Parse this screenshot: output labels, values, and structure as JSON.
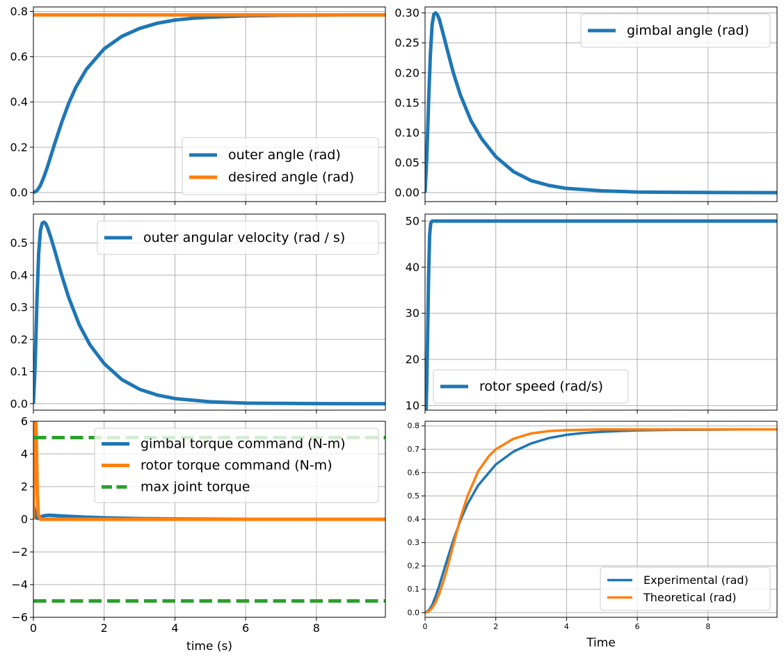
{
  "colors": {
    "blue": "#1f77b4",
    "orange": "#ff7f0e",
    "green": "#2ca02c",
    "grid": "#b0b0b0",
    "axis": "#000000"
  },
  "chart_data": [
    {
      "id": "outer-angle",
      "type": "line",
      "xlim": [
        0,
        9.95
      ],
      "ylim": [
        -0.04,
        0.82
      ],
      "xticks": [
        0,
        2,
        4,
        6,
        8
      ],
      "yticks": [
        0.0,
        0.2,
        0.4,
        0.6,
        0.8
      ],
      "ytick_labels": [
        "0.0",
        "0.2",
        "0.4",
        "0.6",
        "0.8"
      ],
      "show_xtick_labels": false,
      "xlabel": "",
      "grid": true,
      "legend": {
        "placement": "lower-right"
      },
      "series": [
        {
          "name": "outer angle (rad)",
          "color": "blue",
          "dash": "solid",
          "x": [
            0,
            0.1,
            0.2,
            0.3,
            0.4,
            0.5,
            0.6,
            0.8,
            1.0,
            1.2,
            1.5,
            2.0,
            2.5,
            3.0,
            3.5,
            4.0,
            4.5,
            5.0,
            6.0,
            7.0,
            8.0,
            9.0,
            9.95
          ],
          "y": [
            0,
            0.008,
            0.032,
            0.07,
            0.115,
            0.165,
            0.215,
            0.31,
            0.395,
            0.465,
            0.545,
            0.635,
            0.69,
            0.725,
            0.748,
            0.762,
            0.77,
            0.775,
            0.781,
            0.783,
            0.784,
            0.785,
            0.785
          ]
        },
        {
          "name": "desired angle (rad)",
          "color": "orange",
          "dash": "solid",
          "x": [
            0,
            9.95
          ],
          "y": [
            0.785,
            0.785
          ]
        }
      ]
    },
    {
      "id": "gimbal-angle",
      "type": "line",
      "xlim": [
        0,
        9.95
      ],
      "ylim": [
        -0.015,
        0.31
      ],
      "xticks": [
        0,
        2,
        4,
        6,
        8
      ],
      "yticks": [
        0.0,
        0.05,
        0.1,
        0.15,
        0.2,
        0.25,
        0.3
      ],
      "ytick_labels": [
        "0.00",
        "0.05",
        "0.10",
        "0.15",
        "0.20",
        "0.25",
        "0.30"
      ],
      "show_xtick_labels": false,
      "xlabel": "",
      "grid": true,
      "legend": {
        "placement": "upper-right"
      },
      "series": [
        {
          "name": "gimbal angle (rad)",
          "color": "blue",
          "dash": "solid",
          "x": [
            0,
            0.05,
            0.1,
            0.15,
            0.2,
            0.25,
            0.3,
            0.35,
            0.4,
            0.5,
            0.6,
            0.8,
            1.0,
            1.3,
            1.6,
            2.0,
            2.5,
            3.0,
            3.5,
            4.0,
            5.0,
            6.0,
            7.0,
            8.0,
            9.95
          ],
          "y": [
            0,
            0.06,
            0.15,
            0.23,
            0.28,
            0.298,
            0.3,
            0.297,
            0.29,
            0.268,
            0.245,
            0.2,
            0.163,
            0.12,
            0.09,
            0.06,
            0.035,
            0.02,
            0.012,
            0.007,
            0.003,
            0.001,
            0.0005,
            0.0002,
            0.0
          ]
        }
      ]
    },
    {
      "id": "outer-angular-velocity",
      "type": "line",
      "xlim": [
        0,
        9.95
      ],
      "ylim": [
        -0.02,
        0.59
      ],
      "xticks": [
        0,
        2,
        4,
        6,
        8
      ],
      "yticks": [
        0.0,
        0.1,
        0.2,
        0.3,
        0.4,
        0.5
      ],
      "ytick_labels": [
        "0.0",
        "0.1",
        "0.2",
        "0.3",
        "0.4",
        "0.5"
      ],
      "show_xtick_labels": false,
      "xlabel": "",
      "grid": true,
      "legend": {
        "placement": "upper-right"
      },
      "series": [
        {
          "name": "outer angular velocity (rad / s)",
          "color": "blue",
          "dash": "solid",
          "x": [
            0,
            0.05,
            0.1,
            0.15,
            0.2,
            0.25,
            0.3,
            0.35,
            0.4,
            0.5,
            0.6,
            0.8,
            1.0,
            1.3,
            1.6,
            2.0,
            2.5,
            3.0,
            3.5,
            4.0,
            5.0,
            6.0,
            7.0,
            8.0,
            9.95
          ],
          "y": [
            0,
            0.12,
            0.32,
            0.47,
            0.54,
            0.562,
            0.565,
            0.56,
            0.548,
            0.515,
            0.478,
            0.4,
            0.33,
            0.245,
            0.183,
            0.125,
            0.075,
            0.045,
            0.027,
            0.016,
            0.006,
            0.002,
            0.001,
            0.0003,
            0.0
          ]
        }
      ]
    },
    {
      "id": "rotor-speed",
      "type": "line",
      "xlim": [
        0,
        9.95
      ],
      "ylim": [
        9,
        51.5
      ],
      "xticks": [
        0,
        2,
        4,
        6,
        8
      ],
      "yticks": [
        10,
        20,
        30,
        40,
        50
      ],
      "ytick_labels": [
        "10",
        "20",
        "30",
        "40",
        "50"
      ],
      "show_xtick_labels": false,
      "xlabel": "",
      "grid": true,
      "legend": {
        "placement": "lower-left"
      },
      "series": [
        {
          "name": "rotor speed (rad/s)",
          "color": "blue",
          "dash": "solid",
          "x": [
            0,
            0.05,
            0.1,
            0.13,
            0.16,
            0.2,
            9.95
          ],
          "y": [
            0,
            15,
            38,
            47,
            49.5,
            50,
            50
          ]
        }
      ]
    },
    {
      "id": "torque-commands",
      "type": "line",
      "xlim": [
        0,
        9.95
      ],
      "ylim": [
        -6,
        6
      ],
      "xticks": [
        0,
        2,
        4,
        6,
        8
      ],
      "yticks": [
        -6,
        -4,
        -2,
        0,
        2,
        4,
        6
      ],
      "ytick_labels": [
        "−6",
        "−4",
        "−2",
        "0",
        "2",
        "4",
        "6"
      ],
      "xtick_labels": [
        "0",
        "2",
        "4",
        "6",
        "8"
      ],
      "show_xtick_labels": true,
      "xlabel": "time (s)",
      "grid": true,
      "legend": {
        "placement": "upper-right"
      },
      "series": [
        {
          "name": "gimbal torque command (N-m)",
          "color": "blue",
          "dash": "solid",
          "x": [
            0,
            0.02,
            0.05,
            0.08,
            0.12,
            0.2,
            0.3,
            0.45,
            0.7,
            1.0,
            1.5,
            2.0,
            3.0,
            4.0,
            5.0,
            6.0,
            9.95
          ],
          "y": [
            0,
            0.7,
            0.4,
            0.1,
            0.05,
            0.15,
            0.22,
            0.25,
            0.22,
            0.18,
            0.13,
            0.09,
            0.04,
            0.02,
            0.01,
            0.0,
            0.0
          ]
        },
        {
          "name": "rotor torque command (N-m)",
          "color": "orange",
          "dash": "solid",
          "x": [
            0,
            0.01,
            0.04,
            0.07,
            0.09,
            0.11,
            0.14,
            0.2,
            9.95
          ],
          "y": [
            0,
            6,
            6,
            6,
            4,
            1.5,
            0.3,
            0.0,
            0.0
          ]
        },
        {
          "name": "max joint torque",
          "color": "green",
          "dash": "dashed",
          "x": [
            0,
            9.95
          ],
          "y": [
            5,
            5
          ]
        },
        {
          "name": "",
          "color": "green",
          "dash": "dashed",
          "x": [
            0,
            9.95
          ],
          "y": [
            -5,
            -5
          ]
        }
      ]
    },
    {
      "id": "experimental-vs-theoretical",
      "type": "line",
      "xlim": [
        0,
        9.95
      ],
      "ylim": [
        -0.02,
        0.82
      ],
      "xticks": [
        0,
        2,
        4,
        6,
        8
      ],
      "yticks": [
        0.0,
        0.1,
        0.2,
        0.3,
        0.4,
        0.5,
        0.6,
        0.7,
        0.8
      ],
      "ytick_labels": [
        "0.0",
        "0.1",
        "0.2",
        "0.3",
        "0.4",
        "0.5",
        "0.6",
        "0.7",
        "0.8"
      ],
      "xtick_labels": [
        "0",
        "2",
        "4",
        "6",
        "8"
      ],
      "show_xtick_labels": true,
      "xlabel": "Time",
      "grid": true,
      "legend": {
        "placement": "lower-right"
      },
      "series": [
        {
          "name": "Experimental (rad)",
          "color": "blue",
          "dash": "solid",
          "x": [
            0,
            0.1,
            0.2,
            0.3,
            0.4,
            0.5,
            0.6,
            0.8,
            1.0,
            1.2,
            1.5,
            2.0,
            2.5,
            3.0,
            3.5,
            4.0,
            4.5,
            5.0,
            6.0,
            7.0,
            8.0,
            9.0,
            9.95
          ],
          "y": [
            0,
            0.008,
            0.032,
            0.07,
            0.115,
            0.165,
            0.215,
            0.31,
            0.395,
            0.465,
            0.545,
            0.635,
            0.69,
            0.725,
            0.748,
            0.762,
            0.77,
            0.775,
            0.781,
            0.783,
            0.784,
            0.785,
            0.785
          ]
        },
        {
          "name": "Theoretical (rad)",
          "color": "orange",
          "dash": "solid",
          "x": [
            0,
            0.1,
            0.2,
            0.3,
            0.4,
            0.5,
            0.6,
            0.8,
            1.0,
            1.2,
            1.5,
            1.8,
            2.0,
            2.5,
            3.0,
            3.5,
            4.0,
            5.0,
            6.0,
            8.0,
            9.95
          ],
          "y": [
            0,
            0.005,
            0.02,
            0.045,
            0.08,
            0.125,
            0.175,
            0.29,
            0.405,
            0.5,
            0.605,
            0.67,
            0.7,
            0.745,
            0.768,
            0.778,
            0.782,
            0.785,
            0.785,
            0.785,
            0.785
          ]
        }
      ]
    }
  ]
}
